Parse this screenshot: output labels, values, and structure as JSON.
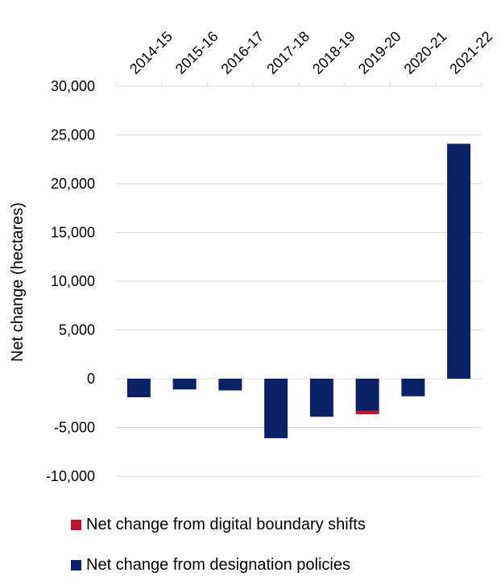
{
  "chart_data": {
    "type": "bar",
    "stacked": true,
    "categories": [
      "2014-15",
      "2015-16",
      "2016-17",
      "2017-18",
      "2018-19",
      "2019-20",
      "2020-21",
      "2021-22"
    ],
    "series": [
      {
        "name": "Net change from designation policies",
        "color": "#0b2267",
        "values": [
          -1900,
          -1100,
          -1200,
          -6100,
          -3900,
          -3300,
          -1800,
          24100
        ]
      },
      {
        "name": "Net change from digital boundary shifts",
        "color": "#c0142c",
        "values": [
          0,
          0,
          0,
          0,
          0,
          -350,
          0,
          0
        ]
      }
    ],
    "yticks": [
      -10000,
      -5000,
      0,
      5000,
      10000,
      15000,
      20000,
      25000,
      30000
    ],
    "ytick_labels": [
      "-10,000",
      "-5,000",
      "0",
      "5,000",
      "10,000",
      "15,000",
      "20,000",
      "25,000",
      "30,000"
    ],
    "ylim": [
      -10000,
      30000
    ],
    "ylabel": "Net change (hectares)",
    "xlabel": "",
    "title": "",
    "grid": true,
    "legend_position": "bottom",
    "x_axis_position": "top"
  },
  "legend": {
    "items": [
      {
        "label": "Net change from digital boundary shifts",
        "color": "#c0142c"
      },
      {
        "label": "Net change from designation policies",
        "color": "#0b2267"
      }
    ]
  }
}
